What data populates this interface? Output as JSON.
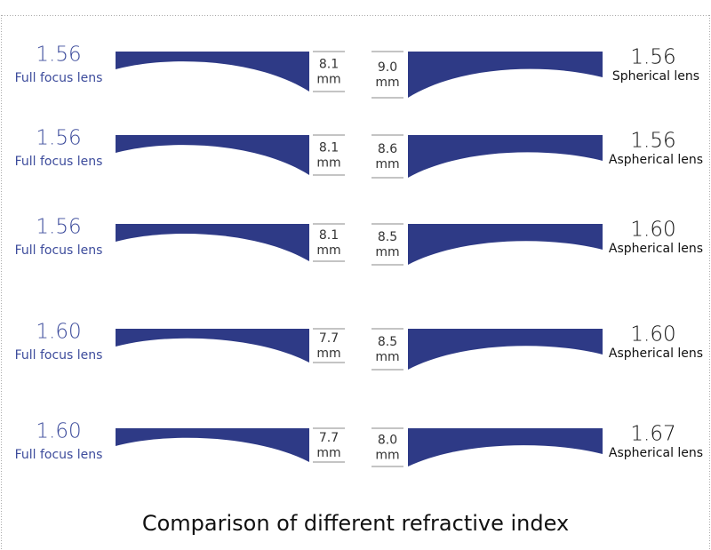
{
  "title": "Comparison of different refractive index",
  "rows": [
    {
      "left": {
        "index": "1.56",
        "label": "Full focus lens",
        "thickness": "8.1",
        "unit": "mm"
      },
      "right": {
        "index": "1.56",
        "label": "Spherical lens",
        "thickness": "9.0",
        "unit": "mm"
      }
    },
    {
      "left": {
        "index": "1.56",
        "label": "Full focus lens",
        "thickness": "8.1",
        "unit": "mm"
      },
      "right": {
        "index": "1.56",
        "label": "Aspherical lens",
        "thickness": "8.6",
        "unit": "mm"
      }
    },
    {
      "left": {
        "index": "1.56",
        "label": "Full focus lens",
        "thickness": "8.1",
        "unit": "mm"
      },
      "right": {
        "index": "1.60",
        "label": "Aspherical lens",
        "thickness": "8.5",
        "unit": "mm"
      }
    },
    {
      "left": {
        "index": "1.60",
        "label": "Full focus lens",
        "thickness": "7.7",
        "unit": "mm"
      },
      "right": {
        "index": "1.60",
        "label": "Aspherical lens",
        "thickness": "8.5",
        "unit": "mm"
      }
    },
    {
      "left": {
        "index": "1.60",
        "label": "Full focus lens",
        "thickness": "7.7",
        "unit": "mm"
      },
      "right": {
        "index": "1.67",
        "label": "Aspherical lens",
        "thickness": "8.0",
        "unit": "mm"
      }
    }
  ]
}
